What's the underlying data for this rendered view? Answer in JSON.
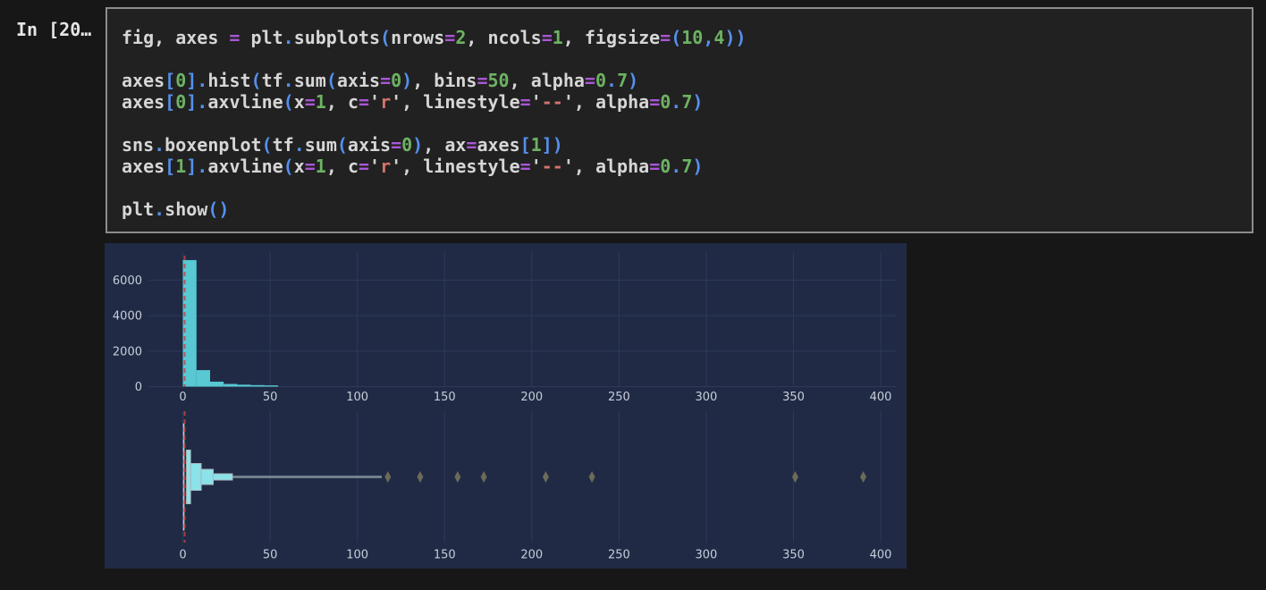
{
  "page": {
    "bg": "#171717"
  },
  "cell": {
    "prompt": "In [20…",
    "code_lines": [
      [
        [
          "id",
          "fig, axes "
        ],
        [
          "op",
          "="
        ],
        [
          "id",
          " plt"
        ],
        [
          "punc",
          "."
        ],
        [
          "id",
          "subplots"
        ],
        [
          "punc",
          "("
        ],
        [
          "id",
          "nrows"
        ],
        [
          "op",
          "="
        ],
        [
          "num",
          "2"
        ],
        [
          "id",
          ", "
        ],
        [
          "id",
          "ncols"
        ],
        [
          "op",
          "="
        ],
        [
          "num",
          "1"
        ],
        [
          "id",
          ", "
        ],
        [
          "id",
          "figsize"
        ],
        [
          "op",
          "="
        ],
        [
          "punc",
          "("
        ],
        [
          "num",
          "10"
        ],
        [
          "punc",
          ","
        ],
        [
          "num",
          "4"
        ],
        [
          "punc",
          "))"
        ]
      ],
      [],
      [
        [
          "id",
          "axes"
        ],
        [
          "punc",
          "["
        ],
        [
          "num",
          "0"
        ],
        [
          "punc",
          "]."
        ],
        [
          "id",
          "hist"
        ],
        [
          "punc",
          "("
        ],
        [
          "id",
          "tf"
        ],
        [
          "punc",
          "."
        ],
        [
          "id",
          "sum"
        ],
        [
          "punc",
          "("
        ],
        [
          "id",
          "axis"
        ],
        [
          "op",
          "="
        ],
        [
          "num",
          "0"
        ],
        [
          "punc",
          ")"
        ],
        [
          "id",
          ", "
        ],
        [
          "id",
          "bins"
        ],
        [
          "op",
          "="
        ],
        [
          "num",
          "50"
        ],
        [
          "id",
          ", "
        ],
        [
          "id",
          "alpha"
        ],
        [
          "op",
          "="
        ],
        [
          "num",
          "0"
        ],
        [
          "punc",
          "."
        ],
        [
          "num",
          "7"
        ],
        [
          "punc",
          ")"
        ]
      ],
      [
        [
          "id",
          "axes"
        ],
        [
          "punc",
          "["
        ],
        [
          "num",
          "0"
        ],
        [
          "punc",
          "]."
        ],
        [
          "id",
          "axvline"
        ],
        [
          "punc",
          "("
        ],
        [
          "id",
          "x"
        ],
        [
          "op",
          "="
        ],
        [
          "num",
          "1"
        ],
        [
          "id",
          ", "
        ],
        [
          "id",
          "c"
        ],
        [
          "op",
          "="
        ],
        [
          "q",
          "'"
        ],
        [
          "str",
          "r"
        ],
        [
          "q",
          "'"
        ],
        [
          "id",
          ", "
        ],
        [
          "id",
          "linestyle"
        ],
        [
          "op",
          "="
        ],
        [
          "q",
          "'"
        ],
        [
          "str",
          "--"
        ],
        [
          "q",
          "'"
        ],
        [
          "id",
          ", "
        ],
        [
          "id",
          "alpha"
        ],
        [
          "op",
          "="
        ],
        [
          "num",
          "0"
        ],
        [
          "punc",
          "."
        ],
        [
          "num",
          "7"
        ],
        [
          "punc",
          ")"
        ]
      ],
      [],
      [
        [
          "id",
          "sns"
        ],
        [
          "punc",
          "."
        ],
        [
          "id",
          "boxenplot"
        ],
        [
          "punc",
          "("
        ],
        [
          "id",
          "tf"
        ],
        [
          "punc",
          "."
        ],
        [
          "id",
          "sum"
        ],
        [
          "punc",
          "("
        ],
        [
          "id",
          "axis"
        ],
        [
          "op",
          "="
        ],
        [
          "num",
          "0"
        ],
        [
          "punc",
          ")"
        ],
        [
          "id",
          ", "
        ],
        [
          "id",
          "ax"
        ],
        [
          "op",
          "="
        ],
        [
          "id",
          "axes"
        ],
        [
          "punc",
          "["
        ],
        [
          "num",
          "1"
        ],
        [
          "punc",
          "])"
        ]
      ],
      [
        [
          "id",
          "axes"
        ],
        [
          "punc",
          "["
        ],
        [
          "num",
          "1"
        ],
        [
          "punc",
          "]."
        ],
        [
          "id",
          "axvline"
        ],
        [
          "punc",
          "("
        ],
        [
          "id",
          "x"
        ],
        [
          "op",
          "="
        ],
        [
          "num",
          "1"
        ],
        [
          "id",
          ", "
        ],
        [
          "id",
          "c"
        ],
        [
          "op",
          "="
        ],
        [
          "q",
          "'"
        ],
        [
          "str",
          "r"
        ],
        [
          "q",
          "'"
        ],
        [
          "id",
          ", "
        ],
        [
          "id",
          "linestyle"
        ],
        [
          "op",
          "="
        ],
        [
          "q",
          "'"
        ],
        [
          "str",
          "--"
        ],
        [
          "q",
          "'"
        ],
        [
          "id",
          ", "
        ],
        [
          "id",
          "alpha"
        ],
        [
          "op",
          "="
        ],
        [
          "num",
          "0"
        ],
        [
          "punc",
          "."
        ],
        [
          "num",
          "7"
        ],
        [
          "punc",
          ")"
        ]
      ],
      [],
      [
        [
          "id",
          "plt"
        ],
        [
          "punc",
          "."
        ],
        [
          "id",
          "show"
        ],
        [
          "punc",
          "()"
        ]
      ]
    ]
  },
  "colors": {
    "figure_bg": "#202a45",
    "grid": "#2d3a59",
    "tick_label": "#c7cdd8",
    "hist_bar": "#58c8d3",
    "boxen_fill": "#8ce2e9",
    "boxen_edge": "#a9b6ba",
    "boxen_tail": "#70808c",
    "outlier_diamond": "#6b6b59",
    "median_line": "#c9d2d4",
    "axvline_red": "#bf4540"
  },
  "chart_data": [
    {
      "type": "bar",
      "subtype": "histogram",
      "title": "",
      "xlabel": "",
      "ylabel": "",
      "grid": true,
      "x_ticks": [
        0,
        50,
        100,
        150,
        200,
        250,
        300,
        350,
        400
      ],
      "y_ticks": [
        0,
        2000,
        4000,
        6000
      ],
      "x_range": [
        -19.5,
        409.2
      ],
      "y_range": [
        0,
        7580
      ],
      "bin_width": 7.8,
      "bins": [
        {
          "x0": 0.0,
          "x1": 7.8,
          "count": 7130
        },
        {
          "x0": 7.8,
          "x1": 15.6,
          "count": 930
        },
        {
          "x0": 15.6,
          "x1": 23.4,
          "count": 280
        },
        {
          "x0": 23.4,
          "x1": 31.2,
          "count": 150
        },
        {
          "x0": 31.2,
          "x1": 39.0,
          "count": 110
        },
        {
          "x0": 39.0,
          "x1": 46.8,
          "count": 85
        },
        {
          "x0": 46.8,
          "x1": 54.6,
          "count": 70
        }
      ],
      "axvline": {
        "x": 1,
        "color": "r",
        "linestyle": "--",
        "alpha": 0.7
      }
    },
    {
      "type": "boxen",
      "subtype": "letter-value-plot",
      "title": "",
      "xlabel": "",
      "ylabel": "",
      "grid": true,
      "x_ticks": [
        0,
        50,
        100,
        150,
        200,
        250,
        300,
        350,
        400
      ],
      "x_range": [
        -19.5,
        409.2
      ],
      "median_x": 0.5,
      "median_half_h": 60,
      "boxes": [
        {
          "x0": 2.05,
          "x1": 4.4,
          "half_h": 30
        },
        {
          "x0": 4.5,
          "x1": 10.5,
          "half_h": 15
        },
        {
          "x0": 10.5,
          "x1": 17.4,
          "half_h": 8.5
        },
        {
          "x0": 17.4,
          "x1": 28.4,
          "half_h": 3.5
        }
      ],
      "tail": {
        "x0": 28.4,
        "x1": 114,
        "half_h": 1.5
      },
      "outliers": [
        117.5,
        136,
        157.5,
        172.5,
        208,
        234.5,
        351,
        390
      ],
      "axvline": {
        "x": 1,
        "color": "r",
        "linestyle": "--",
        "alpha": 0.7
      }
    }
  ]
}
